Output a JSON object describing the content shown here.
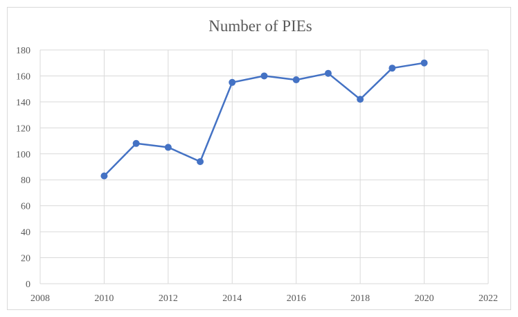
{
  "chart_data": {
    "type": "scatter",
    "title": "Number of PIEs",
    "xlim": [
      2008,
      2022
    ],
    "ylim": [
      0,
      180
    ],
    "x_ticks": [
      2008,
      2010,
      2012,
      2014,
      2016,
      2018,
      2020,
      2022
    ],
    "y_ticks": [
      0,
      20,
      40,
      60,
      80,
      100,
      120,
      140,
      160,
      180
    ],
    "grid": true,
    "legend": "none",
    "series": [
      {
        "x": [
          2010,
          2011,
          2012,
          2013,
          2014,
          2015,
          2016,
          2017,
          2018,
          2019,
          2020
        ],
        "y": [
          83,
          108,
          105,
          94,
          155,
          160,
          157,
          162,
          142,
          166,
          170
        ],
        "color": "#4472c4"
      }
    ]
  }
}
